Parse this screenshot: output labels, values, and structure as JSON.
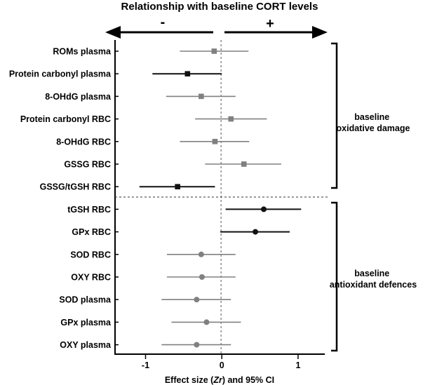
{
  "chart_data": {
    "type": "forest",
    "title": "Relationship with baseline CORT levels",
    "negative_label": "-",
    "positive_label": "+",
    "xlabel_prefix": "Effect size (",
    "xlabel_symbol": "Zr",
    "xlabel_suffix": ") and 95% CI",
    "xlim": [
      -1.4,
      1.35
    ],
    "xticks": [
      {
        "value": -1,
        "label": "-1"
      },
      {
        "value": 0,
        "label": "0"
      },
      {
        "value": 1,
        "label": "1"
      }
    ],
    "reference_line": -0.01,
    "groups": [
      {
        "name": "oxidative",
        "label_lines": [
          "baseline",
          "oxidative damage"
        ],
        "marker": "square",
        "rows": [
          {
            "label": "ROMs plasma",
            "estimate": -0.1,
            "lower": -0.55,
            "upper": 0.35,
            "highlight": false
          },
          {
            "label": "Protein carbonyl plasma",
            "estimate": -0.45,
            "lower": -0.91,
            "upper": 0.0,
            "highlight": true
          },
          {
            "label": "8-OHdG plasma",
            "estimate": -0.27,
            "lower": -0.73,
            "upper": 0.18,
            "highlight": false
          },
          {
            "label": "Protein carbonyl RBC",
            "estimate": 0.12,
            "lower": -0.35,
            "upper": 0.59,
            "highlight": false
          },
          {
            "label": "8-OHdG RBC",
            "estimate": -0.09,
            "lower": -0.55,
            "upper": 0.36,
            "highlight": false
          },
          {
            "label": "GSSG RBC",
            "estimate": 0.29,
            "lower": -0.22,
            "upper": 0.78,
            "highlight": false
          },
          {
            "label": "GSSG/tGSH RBC",
            "estimate": -0.58,
            "lower": -1.08,
            "upper": -0.09,
            "highlight": true
          }
        ]
      },
      {
        "name": "antioxidant",
        "label_lines": [
          "baseline",
          "antioxidant defences"
        ],
        "marker": "circle",
        "rows": [
          {
            "label": "tGSH RBC",
            "estimate": 0.55,
            "lower": 0.05,
            "upper": 1.04,
            "highlight": true
          },
          {
            "label": "GPx RBC",
            "estimate": 0.44,
            "lower": -0.02,
            "upper": 0.89,
            "highlight": true
          },
          {
            "label": "SOD RBC",
            "estimate": -0.27,
            "lower": -0.72,
            "upper": 0.18,
            "highlight": false
          },
          {
            "label": "OXY RBC",
            "estimate": -0.26,
            "lower": -0.72,
            "upper": 0.18,
            "highlight": false
          },
          {
            "label": "SOD plasma",
            "estimate": -0.33,
            "lower": -0.79,
            "upper": 0.12,
            "highlight": false
          },
          {
            "label": "GPx plasma",
            "estimate": -0.2,
            "lower": -0.66,
            "upper": 0.25,
            "highlight": false
          },
          {
            "label": "OXY plasma",
            "estimate": -0.33,
            "lower": -0.79,
            "upper": 0.12,
            "highlight": false
          }
        ]
      }
    ],
    "colors": {
      "highlight": "#111111",
      "normal": "#808080",
      "axis": "#000000"
    }
  }
}
